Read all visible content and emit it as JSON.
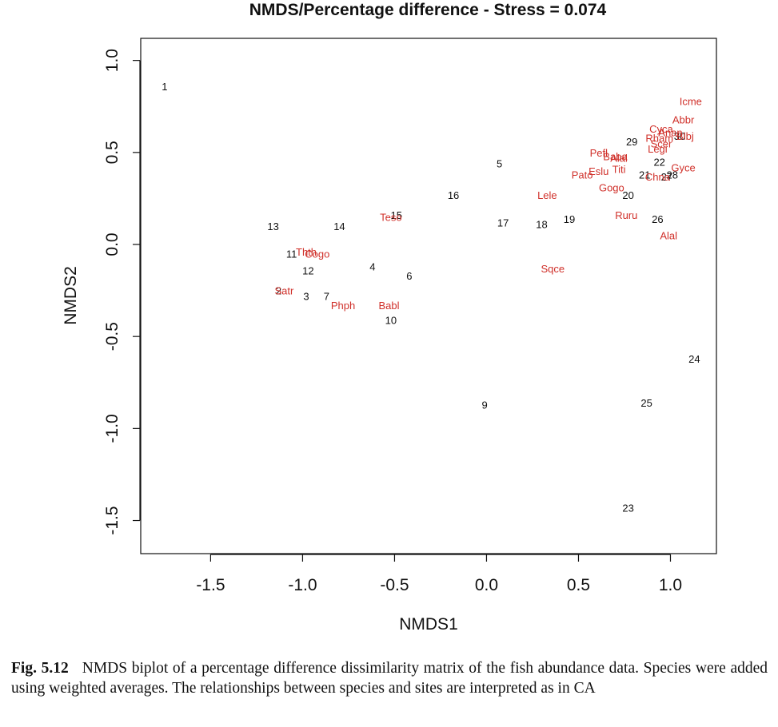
{
  "chart_data": {
    "type": "scatter",
    "title": "NMDS/Percentage difference - Stress = 0.074",
    "xlabel": "NMDS1",
    "ylabel": "NMDS2",
    "xlim": [
      -1.88,
      1.25
    ],
    "ylim": [
      -1.68,
      1.12
    ],
    "x_ticks": [
      -1.5,
      -1.0,
      -0.5,
      0.0,
      0.5,
      1.0
    ],
    "x_tick_labels": [
      "-1.5",
      "-1.0",
      "-0.5",
      "0.0",
      "0.5",
      "1.0"
    ],
    "y_ticks": [
      -1.5,
      -1.0,
      -0.5,
      0.0,
      0.5,
      1.0
    ],
    "y_tick_labels": [
      "-1.5",
      "-1.0",
      "-0.5",
      "0.0",
      "0.5",
      "1.0"
    ],
    "grid": false,
    "colors": {
      "sites": "#111111",
      "species": "#d0302a"
    },
    "series": [
      {
        "points": [
          {
            "label": "1",
            "x": -1.75,
            "y": 0.86
          },
          {
            "label": "2",
            "x": -1.13,
            "y": -0.25
          },
          {
            "label": "3",
            "x": -0.98,
            "y": -0.28
          },
          {
            "label": "4",
            "x": -0.62,
            "y": -0.12
          },
          {
            "label": "5",
            "x": 0.07,
            "y": 0.44
          },
          {
            "label": "6",
            "x": -0.42,
            "y": -0.17
          },
          {
            "label": "7",
            "x": -0.87,
            "y": -0.28
          },
          {
            "label": "10",
            "x": -0.52,
            "y": -0.41
          },
          {
            "label": "11",
            "x": -1.06,
            "y": -0.05
          },
          {
            "label": "12",
            "x": -0.97,
            "y": -0.14
          },
          {
            "label": "13",
            "x": -1.16,
            "y": 0.1
          },
          {
            "label": "14",
            "x": -0.8,
            "y": 0.1
          },
          {
            "label": "15",
            "x": -0.49,
            "y": 0.16
          },
          {
            "label": "16",
            "x": -0.18,
            "y": 0.27
          },
          {
            "label": "17",
            "x": 0.09,
            "y": 0.12
          },
          {
            "label": "18",
            "x": 0.3,
            "y": 0.11
          },
          {
            "label": "19",
            "x": 0.45,
            "y": 0.14
          },
          {
            "label": "20",
            "x": 0.77,
            "y": 0.27
          },
          {
            "label": "21",
            "x": 0.86,
            "y": 0.38
          },
          {
            "label": "22",
            "x": 0.94,
            "y": 0.45
          },
          {
            "label": "23",
            "x": 0.77,
            "y": -1.43
          },
          {
            "label": "24",
            "x": 1.13,
            "y": -0.62
          },
          {
            "label": "25",
            "x": 0.87,
            "y": -0.86
          },
          {
            "label": "26",
            "x": 0.93,
            "y": 0.14
          },
          {
            "label": "27",
            "x": 0.98,
            "y": 0.37
          },
          {
            "label": "28",
            "x": 1.01,
            "y": 0.38
          },
          {
            "label": "29",
            "x": 0.79,
            "y": 0.56
          },
          {
            "label": "30",
            "x": 1.05,
            "y": 0.59
          },
          {
            "label": "9",
            "x": -0.01,
            "y": -0.87
          }
        ]
      },
      {
        "points": [
          {
            "label": "Icme",
            "x": 1.11,
            "y": 0.78
          },
          {
            "label": "Abbr",
            "x": 1.07,
            "y": 0.68
          },
          {
            "label": "Cyca",
            "x": 0.95,
            "y": 0.63
          },
          {
            "label": "Anan",
            "x": 1.0,
            "y": 0.61
          },
          {
            "label": "Blbj",
            "x": 1.08,
            "y": 0.59
          },
          {
            "label": "Rham",
            "x": 0.94,
            "y": 0.58
          },
          {
            "label": "Scer",
            "x": 0.95,
            "y": 0.55
          },
          {
            "label": "Legi",
            "x": 0.93,
            "y": 0.52
          },
          {
            "label": "Pefl",
            "x": 0.61,
            "y": 0.5
          },
          {
            "label": "Baba",
            "x": 0.7,
            "y": 0.48
          },
          {
            "label": "Alal",
            "x": 0.72,
            "y": 0.47
          },
          {
            "label": "Gyce",
            "x": 1.07,
            "y": 0.42
          },
          {
            "label": "Pato",
            "x": 0.52,
            "y": 0.38
          },
          {
            "label": "Eslu",
            "x": 0.61,
            "y": 0.4
          },
          {
            "label": "Titi",
            "x": 0.72,
            "y": 0.41
          },
          {
            "label": "Chna",
            "x": 0.93,
            "y": 0.37
          },
          {
            "label": "Gogo",
            "x": 0.68,
            "y": 0.31
          },
          {
            "label": "Lele",
            "x": 0.33,
            "y": 0.27
          },
          {
            "label": "Ruru",
            "x": 0.76,
            "y": 0.16
          },
          {
            "label": "Alal",
            "x": 0.99,
            "y": 0.05
          },
          {
            "label": "Sqce",
            "x": 0.36,
            "y": -0.13
          },
          {
            "label": "Teso",
            "x": -0.52,
            "y": 0.15
          },
          {
            "label": "Thth",
            "x": -0.98,
            "y": -0.04
          },
          {
            "label": "Cogo",
            "x": -0.92,
            "y": -0.05
          },
          {
            "label": "Satr",
            "x": -1.1,
            "y": -0.25
          },
          {
            "label": "Phph",
            "x": -0.78,
            "y": -0.33
          },
          {
            "label": "Babl",
            "x": -0.53,
            "y": -0.33
          }
        ]
      }
    ]
  },
  "caption": {
    "label": "Fig. 5.12",
    "text": "NMDS biplot of a percentage difference dissimilarity matrix of the fish abundance data. Species were added using weighted averages. The relationships between species and sites are interpreted as in CA"
  }
}
